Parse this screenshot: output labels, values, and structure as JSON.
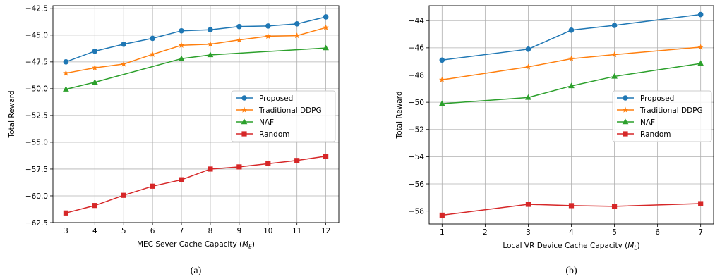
{
  "chart_data": [
    {
      "type": "line",
      "caption": "(a)",
      "xlabel": "MEC Sever Cache Capacity (",
      "xlabel_symbol": "M",
      "xlabel_sub": "E",
      "xlabel_close": ")",
      "ylabel": "Total Reward",
      "x": [
        3,
        4,
        5,
        6,
        7,
        8,
        9,
        10,
        11,
        12
      ],
      "xticks": [
        "3",
        "4",
        "5",
        "6",
        "7",
        "8",
        "9",
        "10",
        "11",
        "12"
      ],
      "yticks": [
        -42.5,
        -45.0,
        -47.5,
        -50.0,
        -52.5,
        -55.0,
        -57.5,
        -60.0,
        -62.5
      ],
      "ytick_labels": [
        "−42.5",
        "−45.0",
        "−47.5",
        "−50.0",
        "−52.5",
        "−55.0",
        "−57.5",
        "−60.0",
        "−62.5"
      ],
      "xlim": [
        2.55,
        12.45
      ],
      "ylim": [
        -62.5,
        -42.25
      ],
      "grid": true,
      "legend_position": "center-right",
      "series": [
        {
          "name": "Proposed",
          "color": "#1f77b4",
          "marker": "circle",
          "values": [
            -47.5,
            -46.5,
            -45.85,
            -45.3,
            -44.6,
            -44.5,
            -44.2,
            -44.15,
            -43.95,
            -43.3
          ]
        },
        {
          "name": "Traditional DDPG",
          "color": "#ff7f0e",
          "marker": "star",
          "values": [
            -48.55,
            -48.05,
            -47.7,
            -46.8,
            -45.95,
            -45.85,
            -45.45,
            -45.1,
            -45.05,
            -44.3
          ]
        },
        {
          "name": "NAF",
          "color": "#2ca02c",
          "marker": "triangle",
          "values": [
            -50.05,
            -49.4,
            null,
            null,
            -47.2,
            -46.85,
            null,
            null,
            null,
            -46.2
          ]
        },
        {
          "name": "Random",
          "color": "#d62728",
          "marker": "square",
          "values": [
            -61.6,
            -60.9,
            -59.95,
            -59.1,
            -58.5,
            -57.5,
            -57.3,
            -57.0,
            -56.7,
            -56.3
          ]
        }
      ]
    },
    {
      "type": "line",
      "caption": "(b)",
      "xlabel": "Local VR Device Cache Capacity (",
      "xlabel_symbol": "M",
      "xlabel_sub": "L",
      "xlabel_close": ")",
      "ylabel": "Total Reward",
      "x": [
        1,
        3,
        4,
        5,
        7
      ],
      "xticks": [
        "1",
        "2",
        "3",
        "4",
        "5",
        "6",
        "7"
      ],
      "yticks": [
        -44,
        -46,
        -48,
        -50,
        -52,
        -54,
        -56,
        -58
      ],
      "ytick_labels": [
        "−44",
        "−46",
        "−48",
        "−50",
        "−52",
        "−54",
        "−56",
        "−58"
      ],
      "xlim": [
        0.7,
        7.3
      ],
      "ylim": [
        -58.95,
        -42.9
      ],
      "grid": true,
      "legend_position": "center-right",
      "series": [
        {
          "name": "Proposed",
          "color": "#1f77b4",
          "marker": "circle",
          "values": [
            -46.9,
            -46.1,
            -44.7,
            -44.35,
            -43.55
          ]
        },
        {
          "name": "Traditional DDPG",
          "color": "#ff7f0e",
          "marker": "star",
          "values": [
            -48.35,
            -47.4,
            -46.8,
            -46.5,
            -45.95
          ]
        },
        {
          "name": "NAF",
          "color": "#2ca02c",
          "marker": "triangle",
          "values": [
            -50.1,
            -49.65,
            -48.8,
            -48.1,
            -47.15
          ]
        },
        {
          "name": "Random",
          "color": "#d62728",
          "marker": "square",
          "values": [
            -58.3,
            -57.5,
            -57.6,
            -57.65,
            -57.45
          ]
        }
      ]
    }
  ]
}
